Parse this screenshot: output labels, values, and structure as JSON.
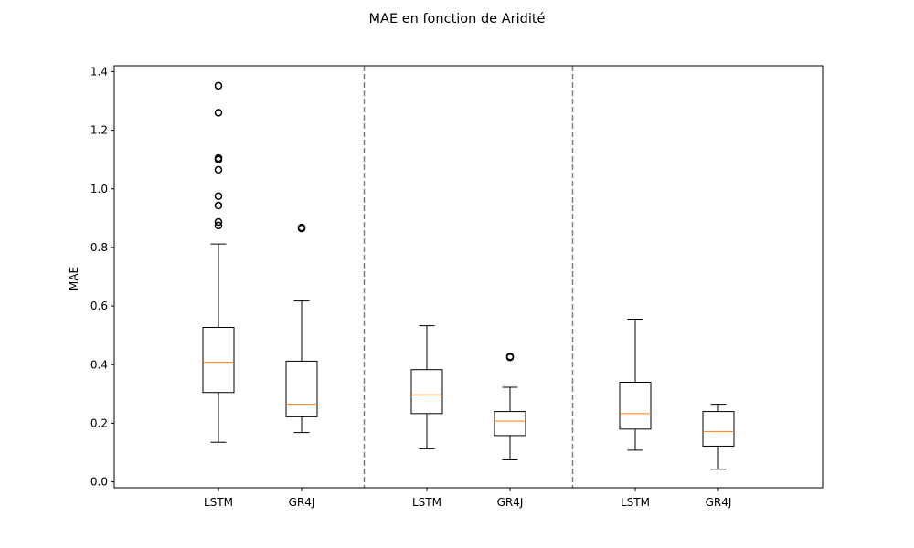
{
  "chart_data": {
    "type": "boxplot",
    "title": "MAE en fonction de Aridité",
    "xlabel": "",
    "ylabel": "MAE",
    "ylim": [
      -0.02,
      1.42
    ],
    "yticks": [
      0.0,
      0.2,
      0.4,
      0.6,
      0.8,
      1.0,
      1.2,
      1.4
    ],
    "ytick_labels": [
      "0.0",
      "0.2",
      "0.4",
      "0.6",
      "0.8",
      "1.0",
      "1.2",
      "1.4"
    ],
    "grid": false,
    "group_separators_after": [
      2,
      4
    ],
    "colors": {
      "box": "#000000",
      "median": "#ff7f0e",
      "separator": "#808080"
    },
    "boxes": [
      {
        "label": "LSTM",
        "whisker_low": 0.135,
        "q1": 0.305,
        "median": 0.408,
        "q3": 0.527,
        "whisker_high": 0.812,
        "outliers": [
          0.875,
          0.887,
          0.943,
          0.975,
          1.065,
          1.1,
          1.105,
          1.26,
          1.352
        ]
      },
      {
        "label": "GR4J",
        "whisker_low": 0.168,
        "q1": 0.222,
        "median": 0.265,
        "q3": 0.412,
        "whisker_high": 0.617,
        "outliers": [
          0.865,
          0.868
        ]
      },
      {
        "label": "LSTM",
        "whisker_low": 0.113,
        "q1": 0.233,
        "median": 0.297,
        "q3": 0.383,
        "whisker_high": 0.533,
        "outliers": []
      },
      {
        "label": "GR4J",
        "whisker_low": 0.075,
        "q1": 0.158,
        "median": 0.207,
        "q3": 0.24,
        "whisker_high": 0.323,
        "outliers": [
          0.425,
          0.428
        ]
      },
      {
        "label": "LSTM",
        "whisker_low": 0.108,
        "q1": 0.18,
        "median": 0.233,
        "q3": 0.34,
        "whisker_high": 0.555,
        "outliers": []
      },
      {
        "label": "GR4J",
        "whisker_low": 0.043,
        "q1": 0.122,
        "median": 0.172,
        "q3": 0.24,
        "whisker_high": 0.265,
        "outliers": []
      }
    ]
  }
}
